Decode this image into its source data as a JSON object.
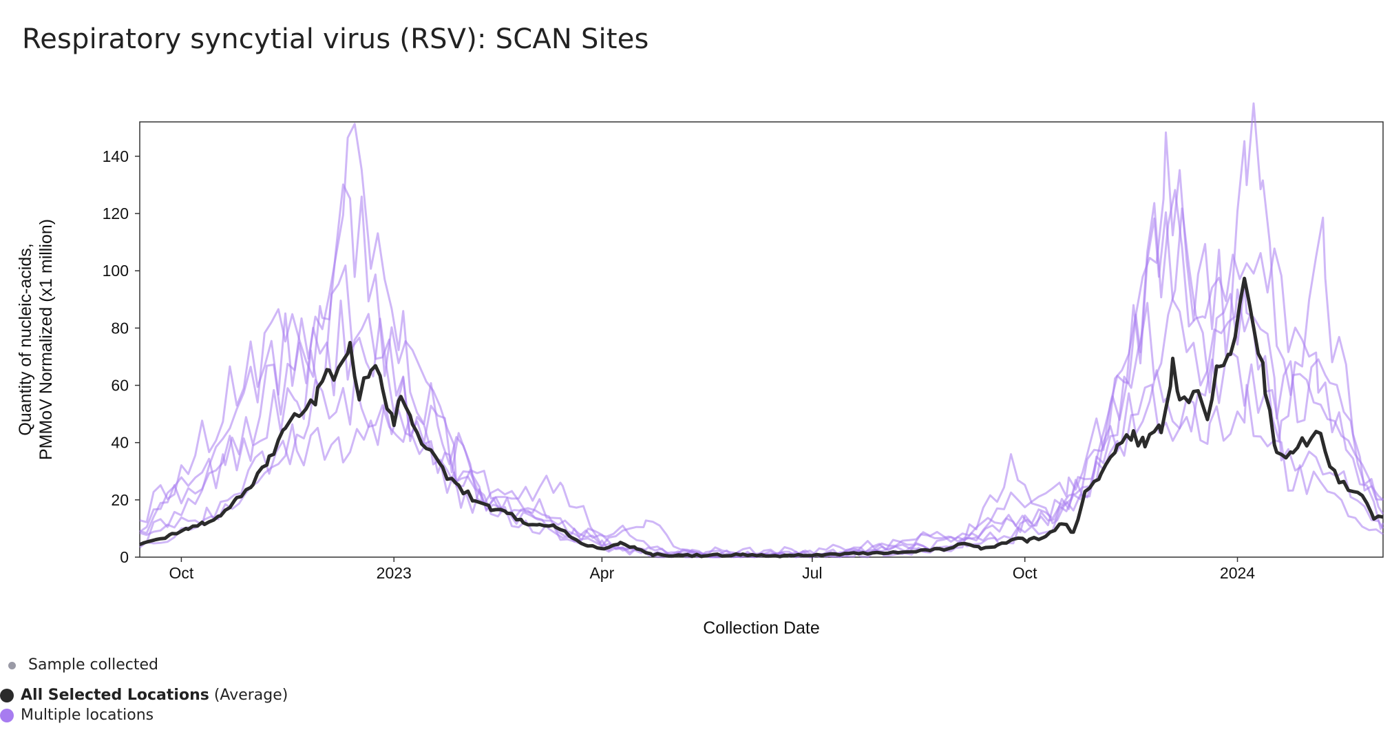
{
  "title": "Respiratory syncytial virus (RSV): SCAN Sites",
  "legend": {
    "sample": "Sample collected",
    "average_bold": "All Selected Locations",
    "average_suffix": "(Average)",
    "multiple": "Multiple locations"
  },
  "colors": {
    "average": "#2b2b2b",
    "locations": "#a77cf0",
    "sample_dot": "#9a9aa6"
  },
  "chart_data": {
    "type": "line",
    "title": "Respiratory syncytial virus (RSV): SCAN Sites",
    "xlabel": "Collection Date",
    "ylabel": [
      "Quantity of nucleic-acids,",
      "PMMoV Normalized (x1 million)"
    ],
    "ylim": [
      0,
      152
    ],
    "xlim": [
      "2022-09-13",
      "2024-03-04"
    ],
    "y_ticks": [
      0,
      20,
      40,
      60,
      80,
      100,
      120,
      140
    ],
    "x_ticks": [
      {
        "date": "2022-10-01",
        "label": "Oct"
      },
      {
        "date": "2023-01-01",
        "label": "2023"
      },
      {
        "date": "2023-04-01",
        "label": "Apr"
      },
      {
        "date": "2023-07-01",
        "label": "Jul"
      },
      {
        "date": "2023-10-01",
        "label": "Oct"
      },
      {
        "date": "2024-01-01",
        "label": "2024"
      }
    ],
    "grid": false,
    "series": [
      {
        "name": "All Selected Locations",
        "role": "average",
        "points": [
          [
            "2022-09-13",
            5
          ],
          [
            "2022-09-20",
            6
          ],
          [
            "2022-09-27",
            8
          ],
          [
            "2022-10-04",
            10
          ],
          [
            "2022-10-11",
            12
          ],
          [
            "2022-10-18",
            15
          ],
          [
            "2022-10-25",
            20
          ],
          [
            "2022-11-01",
            26
          ],
          [
            "2022-11-08",
            34
          ],
          [
            "2022-11-15",
            44
          ],
          [
            "2022-11-22",
            50
          ],
          [
            "2022-11-29",
            56
          ],
          [
            "2022-12-04",
            68
          ],
          [
            "2022-12-08",
            63
          ],
          [
            "2022-12-13",
            71
          ],
          [
            "2022-12-17",
            58
          ],
          [
            "2022-12-22",
            65
          ],
          [
            "2022-12-27",
            61
          ],
          [
            "2023-01-01",
            45
          ],
          [
            "2023-01-04",
            57
          ],
          [
            "2023-01-09",
            47
          ],
          [
            "2023-01-15",
            38
          ],
          [
            "2023-01-22",
            30
          ],
          [
            "2023-01-29",
            24
          ],
          [
            "2023-02-05",
            20
          ],
          [
            "2023-02-12",
            17
          ],
          [
            "2023-02-19",
            15
          ],
          [
            "2023-02-26",
            12
          ],
          [
            "2023-03-05",
            11
          ],
          [
            "2023-03-12",
            11
          ],
          [
            "2023-03-19",
            7
          ],
          [
            "2023-03-26",
            4
          ],
          [
            "2023-04-02",
            3
          ],
          [
            "2023-04-09",
            5
          ],
          [
            "2023-04-16",
            3
          ],
          [
            "2023-04-23",
            1
          ],
          [
            "2023-04-30",
            0.5
          ],
          [
            "2023-05-15",
            0.6
          ],
          [
            "2023-06-01",
            0.8
          ],
          [
            "2023-06-15",
            0.5
          ],
          [
            "2023-07-01",
            0.7
          ],
          [
            "2023-07-15",
            1.2
          ],
          [
            "2023-08-01",
            1.5
          ],
          [
            "2023-08-15",
            2
          ],
          [
            "2023-08-29",
            3
          ],
          [
            "2023-09-05",
            5
          ],
          [
            "2023-09-12",
            3
          ],
          [
            "2023-09-19",
            4
          ],
          [
            "2023-09-26",
            6
          ],
          [
            "2023-10-03",
            6
          ],
          [
            "2023-10-10",
            7
          ],
          [
            "2023-10-17",
            12
          ],
          [
            "2023-10-22",
            9
          ],
          [
            "2023-10-27",
            22
          ],
          [
            "2023-11-03",
            28
          ],
          [
            "2023-11-10",
            38
          ],
          [
            "2023-11-17",
            42
          ],
          [
            "2023-11-22",
            40
          ],
          [
            "2023-11-29",
            46
          ],
          [
            "2023-12-04",
            66
          ],
          [
            "2023-12-07",
            56
          ],
          [
            "2023-12-11",
            52
          ],
          [
            "2023-12-15",
            58
          ],
          [
            "2023-12-19",
            48
          ],
          [
            "2023-12-24",
            67
          ],
          [
            "2023-12-29",
            70
          ],
          [
            "2024-01-04",
            97
          ],
          [
            "2024-01-08",
            82
          ],
          [
            "2024-01-13",
            60
          ],
          [
            "2024-01-18",
            35
          ],
          [
            "2024-01-25",
            36
          ],
          [
            "2024-01-31",
            41
          ],
          [
            "2024-02-06",
            42
          ],
          [
            "2024-02-12",
            29
          ],
          [
            "2024-02-18",
            24
          ],
          [
            "2024-02-24",
            22
          ],
          [
            "2024-02-29",
            14
          ],
          [
            "2024-03-04",
            14
          ]
        ]
      }
    ],
    "location_traces": [
      [
        [
          "2022-09-13",
          10
        ],
        [
          "2022-10-01",
          25
        ],
        [
          "2022-10-20",
          30
        ],
        [
          "2022-11-10",
          60
        ],
        [
          "2022-12-01",
          80
        ],
        [
          "2022-12-12",
          140
        ],
        [
          "2022-12-22",
          100
        ],
        [
          "2023-01-05",
          75
        ],
        [
          "2023-01-22",
          40
        ],
        [
          "2023-02-12",
          22
        ],
        [
          "2023-03-05",
          18
        ],
        [
          "2023-03-22",
          8
        ],
        [
          "2023-04-10",
          8
        ],
        [
          "2023-05-01",
          1
        ],
        [
          "2023-07-01",
          1
        ],
        [
          "2023-09-01",
          4
        ],
        [
          "2023-09-25",
          18
        ],
        [
          "2023-10-20",
          22
        ],
        [
          "2023-11-15",
          60
        ],
        [
          "2023-12-01",
          125
        ],
        [
          "2023-12-15",
          105
        ],
        [
          "2023-12-29",
          80
        ],
        [
          "2024-01-05",
          140
        ],
        [
          "2024-01-12",
          120
        ],
        [
          "2024-01-25",
          60
        ],
        [
          "2024-02-12",
          40
        ],
        [
          "2024-03-04",
          20
        ]
      ],
      [
        [
          "2022-09-13",
          5
        ],
        [
          "2022-10-01",
          18
        ],
        [
          "2022-10-25",
          45
        ],
        [
          "2022-11-15",
          95
        ],
        [
          "2022-12-01",
          75
        ],
        [
          "2022-12-15",
          125
        ],
        [
          "2022-12-28",
          70
        ],
        [
          "2023-01-12",
          62
        ],
        [
          "2023-01-28",
          32
        ],
        [
          "2023-02-18",
          20
        ],
        [
          "2023-03-15",
          25
        ],
        [
          "2023-04-01",
          6
        ],
        [
          "2023-04-20",
          14
        ],
        [
          "2023-05-05",
          2
        ],
        [
          "2023-07-01",
          2
        ],
        [
          "2023-09-05",
          8
        ],
        [
          "2023-10-01",
          12
        ],
        [
          "2023-10-25",
          20
        ],
        [
          "2023-11-20",
          85
        ],
        [
          "2023-12-05",
          125
        ],
        [
          "2023-12-18",
          70
        ],
        [
          "2024-01-05",
          128
        ],
        [
          "2024-01-20",
          90
        ],
        [
          "2024-02-05",
          60
        ],
        [
          "2024-02-20",
          30
        ],
        [
          "2024-03-04",
          12
        ]
      ],
      [
        [
          "2022-09-13",
          8
        ],
        [
          "2022-10-10",
          30
        ],
        [
          "2022-11-01",
          42
        ],
        [
          "2022-11-20",
          58
        ],
        [
          "2022-12-08",
          88
        ],
        [
          "2022-12-20",
          80
        ],
        [
          "2023-01-05",
          52
        ],
        [
          "2023-01-20",
          45
        ],
        [
          "2023-02-08",
          25
        ],
        [
          "2023-03-01",
          12
        ],
        [
          "2023-03-20",
          10
        ],
        [
          "2023-04-10",
          3
        ],
        [
          "2023-05-01",
          1
        ],
        [
          "2023-07-01",
          0.5
        ],
        [
          "2023-09-10",
          6
        ],
        [
          "2023-10-10",
          10
        ],
        [
          "2023-11-01",
          30
        ],
        [
          "2023-11-20",
          70
        ],
        [
          "2023-12-08",
          100
        ],
        [
          "2023-12-20",
          62
        ],
        [
          "2024-01-05",
          100
        ],
        [
          "2024-01-18",
          62
        ],
        [
          "2024-02-10",
          55
        ],
        [
          "2024-03-04",
          15
        ]
      ],
      [
        [
          "2022-09-13",
          3
        ],
        [
          "2022-10-05",
          10
        ],
        [
          "2022-10-28",
          22
        ],
        [
          "2022-11-20",
          40
        ],
        [
          "2022-12-10",
          35
        ],
        [
          "2022-12-28",
          50
        ],
        [
          "2023-01-12",
          35
        ],
        [
          "2023-02-01",
          22
        ],
        [
          "2023-02-25",
          15
        ],
        [
          "2023-03-20",
          6
        ],
        [
          "2023-04-15",
          2
        ],
        [
          "2023-06-01",
          0.5
        ],
        [
          "2023-08-01",
          1
        ],
        [
          "2023-09-20",
          5
        ],
        [
          "2023-10-20",
          18
        ],
        [
          "2023-11-12",
          48
        ],
        [
          "2023-12-01",
          62
        ],
        [
          "2023-12-20",
          45
        ],
        [
          "2024-01-05",
          55
        ],
        [
          "2024-01-25",
          28
        ],
        [
          "2024-02-15",
          18
        ],
        [
          "2024-03-04",
          8
        ]
      ],
      [
        [
          "2022-09-13",
          12
        ],
        [
          "2022-10-01",
          30
        ],
        [
          "2022-10-22",
          58
        ],
        [
          "2022-11-12",
          70
        ],
        [
          "2022-12-03",
          65
        ],
        [
          "2022-12-18",
          90
        ],
        [
          "2023-01-02",
          60
        ],
        [
          "2023-01-18",
          35
        ],
        [
          "2023-02-10",
          18
        ],
        [
          "2023-03-10",
          14
        ],
        [
          "2023-04-01",
          4
        ],
        [
          "2023-04-25",
          1
        ],
        [
          "2023-07-01",
          1
        ],
        [
          "2023-09-01",
          2
        ],
        [
          "2023-09-25",
          30
        ],
        [
          "2023-10-15",
          12
        ],
        [
          "2023-11-05",
          40
        ],
        [
          "2023-11-28",
          112
        ],
        [
          "2023-12-10",
          72
        ],
        [
          "2024-01-01",
          95
        ],
        [
          "2024-01-20",
          40
        ],
        [
          "2024-02-08",
          100
        ],
        [
          "2024-02-25",
          25
        ],
        [
          "2024-03-04",
          20
        ]
      ],
      [
        [
          "2022-09-13",
          6
        ],
        [
          "2022-10-12",
          15
        ],
        [
          "2022-11-05",
          32
        ],
        [
          "2022-11-25",
          50
        ],
        [
          "2022-12-15",
          55
        ],
        [
          "2023-01-05",
          45
        ],
        [
          "2023-01-25",
          30
        ],
        [
          "2023-02-15",
          16
        ],
        [
          "2023-03-08",
          10
        ],
        [
          "2023-04-01",
          3
        ],
        [
          "2023-05-01",
          0.8
        ],
        [
          "2023-07-15",
          1
        ],
        [
          "2023-09-12",
          10
        ],
        [
          "2023-10-08",
          14
        ],
        [
          "2023-11-01",
          28
        ],
        [
          "2023-11-25",
          55
        ],
        [
          "2023-12-12",
          48
        ],
        [
          "2024-01-01",
          72
        ],
        [
          "2024-01-20",
          42
        ],
        [
          "2024-02-10",
          30
        ],
        [
          "2024-03-04",
          10
        ]
      ]
    ]
  }
}
